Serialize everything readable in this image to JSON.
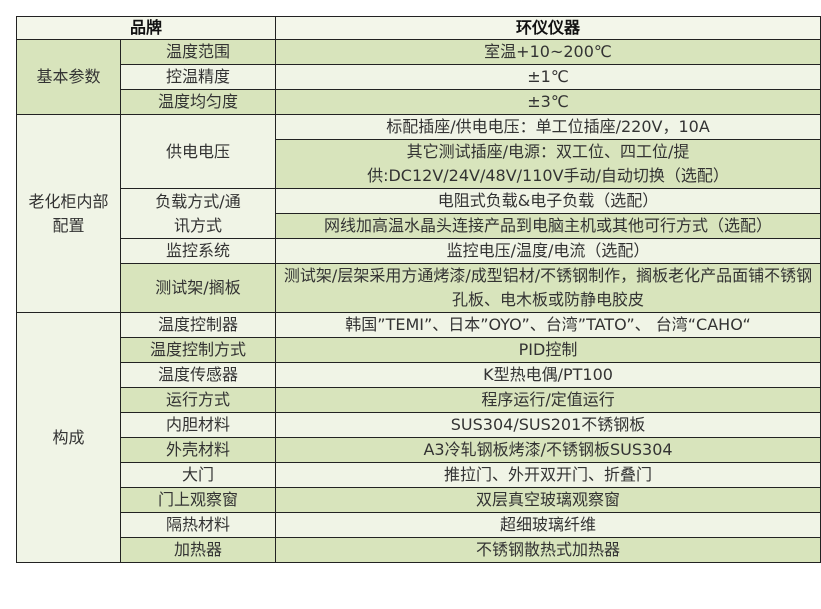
{
  "header": {
    "brand_label": "品牌",
    "brand_value": "环仪仪器"
  },
  "groups": {
    "basic": {
      "label": "基本参数",
      "rows": [
        {
          "name": "温度范围",
          "value": "室温+10~200℃"
        },
        {
          "name": "控温精度",
          "value": "±1℃"
        },
        {
          "name": "温度均匀度",
          "value": "±3℃"
        }
      ]
    },
    "internal": {
      "label": "老化柜内部配置",
      "power": {
        "name": "供电电压",
        "values": [
          "标配插座/供电电压：单工位插座/220V，10A",
          "其它测试插座/电源：双工位、四工位/提供:DC12V/24V/48V/110V手动/自动切换（选配）"
        ]
      },
      "load": {
        "name": "负载方式/通讯方式",
        "values": [
          "电阻式负载&电子负载（选配）",
          "网线加高温水晶头连接产品到电脑主机或其他可行方式（选配）"
        ]
      },
      "monitor": {
        "name": "监控系统",
        "value": "监控电压/温度/电流（选配）"
      },
      "rack": {
        "name": "测试架/搁板",
        "value": "测试架/层架采用方通烤漆/成型铝材/不锈钢制作，搁板老化产品面铺不锈钢孔板、电木板或防静电胶皮"
      }
    },
    "composition": {
      "label": "构成",
      "rows": [
        {
          "name": "温度控制器",
          "value": "韩国”TEMI”、日本”OYO”、台湾”TATO”、 台湾“CAHO“"
        },
        {
          "name": "温度控制方式",
          "value": "PID控制"
        },
        {
          "name": "温度传感器",
          "value": "K型热电偶/PT100"
        },
        {
          "name": "运行方式",
          "value": "程序运行/定值运行"
        },
        {
          "name": "内胆材料",
          "value": "SUS304/SUS201不锈钢板"
        },
        {
          "name": "外壳材料",
          "value": "A3冷轧钢板烤漆/不锈钢板SUS304"
        },
        {
          "name": "大门",
          "value": "推拉门、外开双开门、折叠门"
        },
        {
          "name": "门上观察窗",
          "value": "双层真空玻璃观察窗"
        },
        {
          "name": "隔热材料",
          "value": "超细玻璃纤维"
        },
        {
          "name": "加热器",
          "value": "不锈钢散热式加热器"
        }
      ]
    }
  },
  "colors": {
    "green": "#d8e4bc",
    "light": "#f0f4e6",
    "border": "#222222"
  }
}
